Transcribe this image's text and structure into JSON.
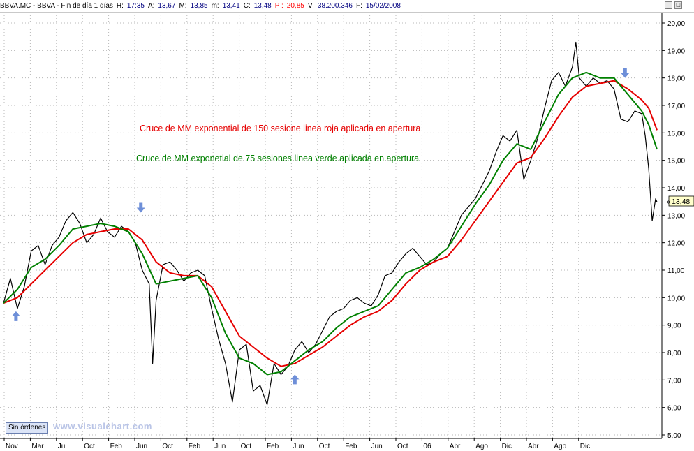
{
  "header": {
    "symbol": "BBVA.MC - BBVA - Fin de día 1 días",
    "h_label": "H:",
    "h_value": "17:35",
    "a_label": "A:",
    "a_value": "13,67",
    "m_label": "M:",
    "m_value": "13,85",
    "min_label": "m:",
    "min_value": "13,41",
    "c_label": "C:",
    "c_value": "13,48",
    "p_label": "P :",
    "p_value": "20,85",
    "v_label": "V:",
    "v_value": "38.200.346",
    "f_label": "F:",
    "f_value": "15/02/2008"
  },
  "window_controls": {
    "minimize": "_",
    "maximize": "□"
  },
  "annotations": {
    "red_text": "Cruce de MM exponential de 150 sesione linea roja aplicada en apertura",
    "green_text": "Cruce de MM exponetial de 75 sesiones linea verde aplicada en apertura",
    "red_color": "#e60000",
    "green_color": "#008000"
  },
  "footer": {
    "orders_button": "Sin órdenes",
    "watermark": "www.visualchart.com"
  },
  "chart_data": {
    "type": "line",
    "ylim": [
      5,
      20.5
    ],
    "y_ticks": [
      "5,00",
      "6,00",
      "7,00",
      "8,00",
      "9,00",
      "10,00",
      "11,00",
      "12,00",
      "13,00",
      "14,00",
      "15,00",
      "16,00",
      "17,00",
      "18,00",
      "19,00",
      "20,00"
    ],
    "y_tick_values": [
      5,
      6,
      7,
      8,
      9,
      10,
      11,
      12,
      13,
      14,
      15,
      16,
      17,
      18,
      19,
      20
    ],
    "x_ticks": [
      "Nov",
      "Mar",
      "Jul",
      "Oct",
      "Feb",
      "Jun",
      "Oct",
      "Feb",
      "Jun",
      "Oct",
      "Feb",
      "Jun",
      "Oct",
      "Feb",
      "Jun",
      "Oct",
      "06",
      "Abr",
      "Ago",
      "Dic",
      "Abr",
      "Ago",
      "Dic"
    ],
    "last_price_label": "13,48",
    "last_price": 13.48,
    "series": [
      {
        "color": "#000000",
        "points": [
          [
            0,
            9.8
          ],
          [
            10,
            10.7
          ],
          [
            20,
            9.6
          ],
          [
            30,
            10.4
          ],
          [
            40,
            11.7
          ],
          [
            50,
            11.9
          ],
          [
            60,
            11.2
          ],
          [
            70,
            11.9
          ],
          [
            80,
            12.2
          ],
          [
            90,
            12.8
          ],
          [
            100,
            13.1
          ],
          [
            110,
            12.7
          ],
          [
            120,
            12.0
          ],
          [
            130,
            12.3
          ],
          [
            140,
            12.9
          ],
          [
            150,
            12.4
          ],
          [
            160,
            12.2
          ],
          [
            170,
            12.6
          ],
          [
            180,
            12.4
          ],
          [
            190,
            12.0
          ],
          [
            200,
            11.0
          ],
          [
            210,
            10.5
          ],
          [
            215,
            7.6
          ],
          [
            220,
            9.9
          ],
          [
            230,
            11.2
          ],
          [
            240,
            11.3
          ],
          [
            250,
            11.0
          ],
          [
            260,
            10.6
          ],
          [
            270,
            10.9
          ],
          [
            280,
            11.0
          ],
          [
            290,
            10.8
          ],
          [
            300,
            9.6
          ],
          [
            310,
            8.5
          ],
          [
            320,
            7.6
          ],
          [
            330,
            6.2
          ],
          [
            340,
            8.1
          ],
          [
            350,
            8.3
          ],
          [
            360,
            6.6
          ],
          [
            370,
            6.8
          ],
          [
            380,
            6.1
          ],
          [
            390,
            7.6
          ],
          [
            400,
            7.2
          ],
          [
            410,
            7.5
          ],
          [
            420,
            8.1
          ],
          [
            430,
            8.4
          ],
          [
            440,
            8.0
          ],
          [
            450,
            8.3
          ],
          [
            460,
            8.8
          ],
          [
            470,
            9.3
          ],
          [
            480,
            9.5
          ],
          [
            490,
            9.6
          ],
          [
            500,
            9.9
          ],
          [
            510,
            10.0
          ],
          [
            520,
            9.8
          ],
          [
            530,
            9.7
          ],
          [
            540,
            10.1
          ],
          [
            550,
            10.8
          ],
          [
            560,
            10.9
          ],
          [
            570,
            11.3
          ],
          [
            580,
            11.6
          ],
          [
            590,
            11.8
          ],
          [
            600,
            11.5
          ],
          [
            610,
            11.2
          ],
          [
            620,
            11.3
          ],
          [
            630,
            11.6
          ],
          [
            640,
            11.8
          ],
          [
            650,
            12.4
          ],
          [
            660,
            13.0
          ],
          [
            670,
            13.3
          ],
          [
            680,
            13.6
          ],
          [
            690,
            14.1
          ],
          [
            700,
            14.6
          ],
          [
            710,
            15.3
          ],
          [
            720,
            15.9
          ],
          [
            730,
            15.7
          ],
          [
            740,
            16.1
          ],
          [
            750,
            14.3
          ],
          [
            760,
            15.0
          ],
          [
            770,
            15.8
          ],
          [
            780,
            16.9
          ],
          [
            790,
            17.9
          ],
          [
            800,
            18.2
          ],
          [
            810,
            17.7
          ],
          [
            820,
            18.4
          ],
          [
            825,
            19.3
          ],
          [
            830,
            18.0
          ],
          [
            840,
            17.7
          ],
          [
            850,
            18.0
          ],
          [
            860,
            17.8
          ],
          [
            870,
            17.9
          ],
          [
            880,
            17.6
          ],
          [
            890,
            16.5
          ],
          [
            900,
            16.4
          ],
          [
            910,
            16.8
          ],
          [
            920,
            16.7
          ],
          [
            925,
            15.9
          ],
          [
            930,
            14.7
          ],
          [
            935,
            12.8
          ],
          [
            940,
            13.6
          ],
          [
            942,
            13.48
          ]
        ]
      },
      {
        "name": "",
        "color": "#e60000",
        "points": [
          [
            0,
            9.8
          ],
          [
            20,
            10.0
          ],
          [
            40,
            10.5
          ],
          [
            60,
            11.0
          ],
          [
            80,
            11.5
          ],
          [
            100,
            12.0
          ],
          [
            120,
            12.3
          ],
          [
            140,
            12.4
          ],
          [
            160,
            12.5
          ],
          [
            180,
            12.5
          ],
          [
            200,
            12.1
          ],
          [
            220,
            11.3
          ],
          [
            240,
            10.9
          ],
          [
            260,
            10.8
          ],
          [
            280,
            10.8
          ],
          [
            300,
            10.4
          ],
          [
            320,
            9.5
          ],
          [
            340,
            8.6
          ],
          [
            360,
            8.2
          ],
          [
            380,
            7.8
          ],
          [
            400,
            7.5
          ],
          [
            420,
            7.6
          ],
          [
            440,
            7.9
          ],
          [
            460,
            8.2
          ],
          [
            480,
            8.6
          ],
          [
            500,
            9.0
          ],
          [
            520,
            9.3
          ],
          [
            540,
            9.5
          ],
          [
            560,
            9.9
          ],
          [
            580,
            10.5
          ],
          [
            600,
            11.0
          ],
          [
            620,
            11.3
          ],
          [
            640,
            11.5
          ],
          [
            660,
            12.1
          ],
          [
            680,
            12.8
          ],
          [
            700,
            13.5
          ],
          [
            720,
            14.2
          ],
          [
            740,
            14.9
          ],
          [
            760,
            15.1
          ],
          [
            780,
            15.8
          ],
          [
            800,
            16.6
          ],
          [
            820,
            17.3
          ],
          [
            840,
            17.7
          ],
          [
            860,
            17.8
          ],
          [
            880,
            17.9
          ],
          [
            900,
            17.6
          ],
          [
            920,
            17.2
          ],
          [
            930,
            16.9
          ],
          [
            942,
            16.1
          ]
        ]
      },
      {
        "name": "",
        "color": "#008000",
        "points": [
          [
            0,
            9.8
          ],
          [
            20,
            10.3
          ],
          [
            40,
            11.1
          ],
          [
            60,
            11.4
          ],
          [
            80,
            11.9
          ],
          [
            100,
            12.5
          ],
          [
            120,
            12.6
          ],
          [
            140,
            12.7
          ],
          [
            160,
            12.6
          ],
          [
            180,
            12.4
          ],
          [
            200,
            11.6
          ],
          [
            220,
            10.5
          ],
          [
            240,
            10.6
          ],
          [
            260,
            10.7
          ],
          [
            280,
            10.8
          ],
          [
            300,
            10.0
          ],
          [
            320,
            8.7
          ],
          [
            340,
            7.8
          ],
          [
            360,
            7.6
          ],
          [
            380,
            7.2
          ],
          [
            400,
            7.3
          ],
          [
            420,
            7.7
          ],
          [
            440,
            8.1
          ],
          [
            460,
            8.4
          ],
          [
            480,
            8.9
          ],
          [
            500,
            9.3
          ],
          [
            520,
            9.5
          ],
          [
            540,
            9.7
          ],
          [
            560,
            10.3
          ],
          [
            580,
            10.9
          ],
          [
            600,
            11.1
          ],
          [
            620,
            11.4
          ],
          [
            640,
            11.8
          ],
          [
            660,
            12.6
          ],
          [
            680,
            13.4
          ],
          [
            700,
            14.1
          ],
          [
            720,
            15.0
          ],
          [
            740,
            15.6
          ],
          [
            760,
            15.4
          ],
          [
            780,
            16.4
          ],
          [
            800,
            17.4
          ],
          [
            820,
            18.0
          ],
          [
            840,
            18.2
          ],
          [
            860,
            18.0
          ],
          [
            880,
            18.0
          ],
          [
            900,
            17.4
          ],
          [
            920,
            16.8
          ],
          [
            930,
            16.3
          ],
          [
            942,
            15.4
          ]
        ]
      }
    ],
    "markers": [
      {
        "direction": "up",
        "x": 18,
        "y": 9.3,
        "color": "#6e8fd8"
      },
      {
        "direction": "down",
        "x": 198,
        "y": 13.3,
        "color": "#6e8fd8"
      },
      {
        "direction": "up",
        "x": 420,
        "y": 7.0,
        "color": "#6e8fd8"
      },
      {
        "direction": "down",
        "x": 896,
        "y": 18.2,
        "color": "#6e8fd8"
      }
    ]
  }
}
